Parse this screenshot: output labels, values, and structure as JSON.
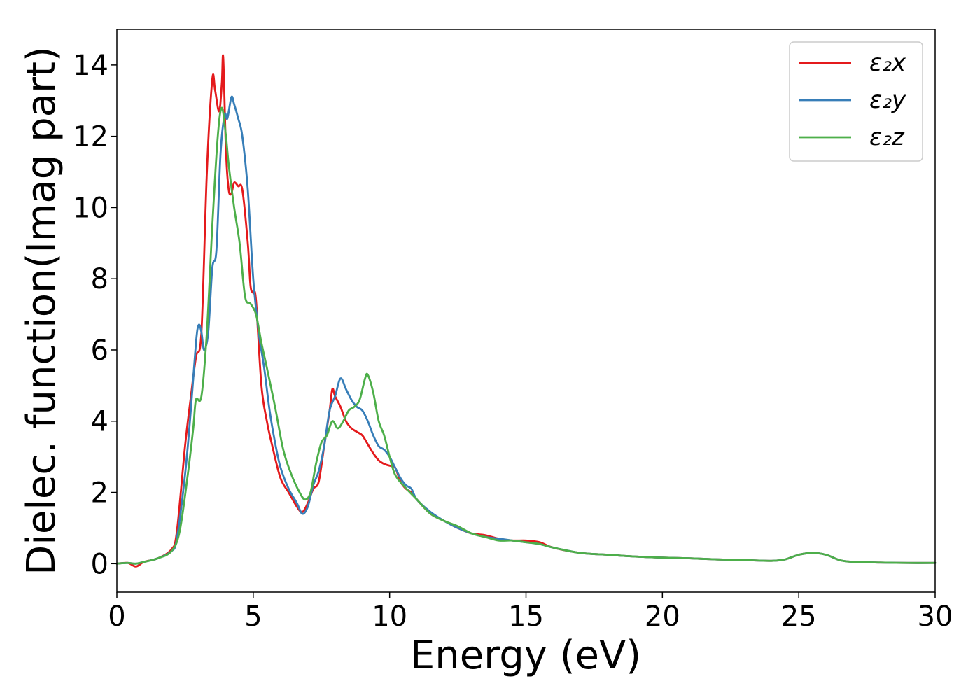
{
  "chart_data": {
    "type": "line",
    "title": "",
    "xlabel": "Energy (eV)",
    "ylabel": "Dielec. function(Imag part)",
    "xlim": [
      0,
      30
    ],
    "ylim": [
      -0.8,
      15
    ],
    "xticks": [
      0,
      5,
      10,
      15,
      20,
      25,
      30
    ],
    "yticks": [
      0,
      2,
      4,
      6,
      8,
      10,
      12,
      14
    ],
    "grid": false,
    "legend_position": "top-right",
    "series": [
      {
        "name": "ε₂x",
        "color": "#e41a1c",
        "x": [
          0,
          0.4,
          0.7,
          1.0,
          1.5,
          2.0,
          2.2,
          2.5,
          2.7,
          2.9,
          3.1,
          3.3,
          3.5,
          3.6,
          3.75,
          3.85,
          3.9,
          4.0,
          4.1,
          4.2,
          4.3,
          4.45,
          4.6,
          4.8,
          4.9,
          5.0,
          5.1,
          5.3,
          5.5,
          5.7,
          6.0,
          6.3,
          6.6,
          6.8,
          7.0,
          7.2,
          7.4,
          7.6,
          7.8,
          7.9,
          8.0,
          8.2,
          8.4,
          8.6,
          8.8,
          9.0,
          9.2,
          9.4,
          9.6,
          9.8,
          10.0,
          10.2,
          10.4,
          10.6,
          10.8,
          11.0,
          11.5,
          12.0,
          12.5,
          13.0,
          13.5,
          14.0,
          14.5,
          15.0,
          15.5,
          16.0,
          17.0,
          18.0,
          19.0,
          20.0,
          21.0,
          22.0,
          23.0,
          24.0,
          24.5,
          25.0,
          25.5,
          26.0,
          26.5,
          27.0,
          28.0,
          29.0,
          30.0
        ],
        "y": [
          0.0,
          0.02,
          -0.08,
          0.05,
          0.15,
          0.4,
          0.9,
          3.3,
          4.6,
          5.8,
          6.5,
          11.0,
          13.6,
          13.3,
          12.7,
          13.5,
          14.2,
          11.6,
          10.5,
          10.4,
          10.7,
          10.6,
          10.5,
          9.0,
          7.8,
          7.6,
          7.4,
          5.0,
          4.0,
          3.3,
          2.4,
          2.0,
          1.6,
          1.45,
          1.7,
          2.1,
          2.3,
          3.3,
          4.3,
          4.9,
          4.7,
          4.4,
          4.0,
          3.8,
          3.7,
          3.6,
          3.35,
          3.1,
          2.9,
          2.8,
          2.75,
          2.7,
          2.3,
          2.1,
          2.0,
          1.8,
          1.4,
          1.2,
          1.0,
          0.85,
          0.8,
          0.7,
          0.65,
          0.65,
          0.6,
          0.45,
          0.3,
          0.25,
          0.2,
          0.17,
          0.15,
          0.12,
          0.1,
          0.08,
          0.12,
          0.25,
          0.3,
          0.25,
          0.1,
          0.05,
          0.03,
          0.02,
          0.02
        ]
      },
      {
        "name": "ε₂y",
        "color": "#377eb8",
        "x": [
          0,
          0.4,
          0.7,
          1.0,
          1.5,
          2.0,
          2.2,
          2.5,
          2.7,
          2.9,
          3.0,
          3.1,
          3.2,
          3.35,
          3.5,
          3.65,
          3.8,
          3.95,
          4.05,
          4.2,
          4.3,
          4.45,
          4.6,
          4.8,
          5.0,
          5.2,
          5.4,
          5.6,
          5.8,
          6.0,
          6.3,
          6.6,
          6.8,
          7.0,
          7.2,
          7.4,
          7.6,
          7.8,
          8.0,
          8.2,
          8.4,
          8.6,
          8.8,
          9.0,
          9.2,
          9.4,
          9.6,
          9.8,
          10.0,
          10.2,
          10.4,
          10.6,
          10.8,
          11.0,
          11.5,
          12.0,
          12.5,
          13.0,
          13.5,
          14.0,
          14.5,
          15.0,
          15.5,
          16.0,
          17.0,
          18.0,
          19.0,
          20.0,
          21.0,
          22.0,
          23.0,
          24.0,
          24.5,
          25.0,
          25.5,
          26.0,
          26.5,
          27.0,
          28.0,
          29.0,
          30.0
        ],
        "y": [
          0.0,
          0.02,
          0.0,
          0.05,
          0.15,
          0.35,
          0.7,
          2.5,
          4.2,
          6.2,
          6.7,
          6.5,
          6.0,
          6.5,
          8.3,
          8.8,
          11.5,
          12.6,
          12.5,
          13.1,
          12.9,
          12.5,
          12.0,
          10.5,
          8.0,
          6.5,
          5.5,
          4.3,
          3.4,
          2.7,
          2.1,
          1.7,
          1.4,
          1.6,
          2.2,
          2.6,
          3.3,
          4.3,
          4.7,
          5.2,
          4.9,
          4.6,
          4.4,
          4.3,
          4.0,
          3.6,
          3.3,
          3.2,
          3.0,
          2.7,
          2.4,
          2.2,
          2.1,
          1.8,
          1.45,
          1.2,
          1.0,
          0.85,
          0.75,
          0.7,
          0.65,
          0.6,
          0.55,
          0.45,
          0.3,
          0.25,
          0.2,
          0.17,
          0.15,
          0.12,
          0.1,
          0.08,
          0.12,
          0.25,
          0.3,
          0.25,
          0.1,
          0.05,
          0.03,
          0.02,
          0.02
        ]
      },
      {
        "name": "ε₂z",
        "color": "#4daf4a",
        "x": [
          0,
          0.4,
          0.7,
          1.0,
          1.5,
          2.0,
          2.3,
          2.6,
          2.8,
          2.9,
          3.1,
          3.3,
          3.5,
          3.7,
          3.85,
          4.0,
          4.1,
          4.3,
          4.5,
          4.7,
          4.9,
          5.1,
          5.3,
          5.5,
          5.8,
          6.1,
          6.4,
          6.7,
          6.9,
          7.1,
          7.3,
          7.5,
          7.7,
          7.9,
          8.1,
          8.3,
          8.5,
          8.7,
          8.9,
          9.1,
          9.2,
          9.4,
          9.6,
          9.8,
          10.0,
          10.2,
          10.5,
          11.0,
          11.5,
          12.0,
          12.5,
          13.0,
          13.5,
          14.0,
          14.5,
          15.0,
          15.5,
          16.0,
          17.0,
          18.0,
          19.0,
          20.0,
          21.0,
          22.0,
          23.0,
          24.0,
          24.5,
          25.0,
          25.5,
          26.0,
          26.5,
          27.0,
          28.0,
          29.0,
          30.0
        ],
        "y": [
          0.0,
          0.02,
          0.0,
          0.05,
          0.15,
          0.35,
          0.9,
          2.5,
          3.8,
          4.6,
          4.7,
          6.5,
          9.5,
          12.0,
          12.8,
          12.0,
          11.2,
          10.0,
          9.0,
          7.5,
          7.3,
          7.0,
          6.2,
          5.5,
          4.4,
          3.2,
          2.5,
          2.0,
          1.8,
          2.0,
          2.8,
          3.4,
          3.6,
          4.0,
          3.8,
          4.0,
          4.3,
          4.4,
          4.6,
          5.2,
          5.3,
          4.8,
          4.0,
          3.6,
          3.0,
          2.5,
          2.2,
          1.8,
          1.4,
          1.2,
          1.05,
          0.85,
          0.75,
          0.65,
          0.65,
          0.6,
          0.55,
          0.45,
          0.3,
          0.25,
          0.2,
          0.17,
          0.15,
          0.12,
          0.1,
          0.08,
          0.12,
          0.25,
          0.3,
          0.25,
          0.1,
          0.05,
          0.03,
          0.02,
          0.02
        ]
      }
    ]
  }
}
